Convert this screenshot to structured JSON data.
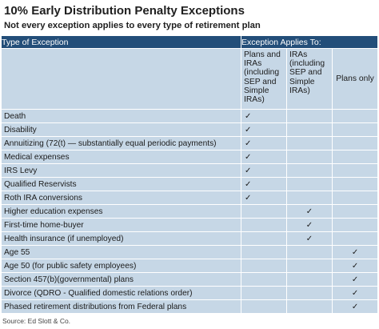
{
  "title": "10% Early Distribution Penalty Exceptions",
  "subtitle": "Not every exception applies to every type of retirement plan",
  "table": {
    "header_exception": "Type of Exception",
    "header_applies": "Exception Applies To:",
    "columns": [
      "Plans and IRAs (including SEP and Simple IRAs)",
      "IRAs (including SEP and Simple IRAs)",
      "Plans only"
    ],
    "check_symbol": "✓",
    "rows": [
      {
        "label": "Death",
        "col": 0
      },
      {
        "label": "Disability",
        "col": 0
      },
      {
        "label": "Annuitizing  (72(t) — substantially equal periodic payments)",
        "col": 0
      },
      {
        "label": "Medical expenses",
        "col": 0
      },
      {
        "label": "IRS Levy",
        "col": 0
      },
      {
        "label": "Qualified Reservists",
        "col": 0
      },
      {
        "label": "Roth IRA conversions",
        "col": 0
      },
      {
        "label": "Higher education expenses",
        "col": 1
      },
      {
        "label": "First-time home-buyer",
        "col": 1
      },
      {
        "label": "Health insurance (if unemployed)",
        "col": 1
      },
      {
        "label": "Age 55",
        "col": 2
      },
      {
        "label": "Age 50 (for public safety employees)",
        "col": 2
      },
      {
        "label": "Section 457(b)(governmental) plans",
        "col": 2
      },
      {
        "label": "Divorce (QDRO - Qualified domestic relations order)",
        "col": 2
      },
      {
        "label": "Phased retirement distributions from Federal plans",
        "col": 2
      }
    ]
  },
  "source": "Source: Ed Slott & Co.",
  "colors": {
    "header_bg": "#234e79",
    "cell_bg": "#c6d7e6",
    "border": "#ffffff"
  }
}
